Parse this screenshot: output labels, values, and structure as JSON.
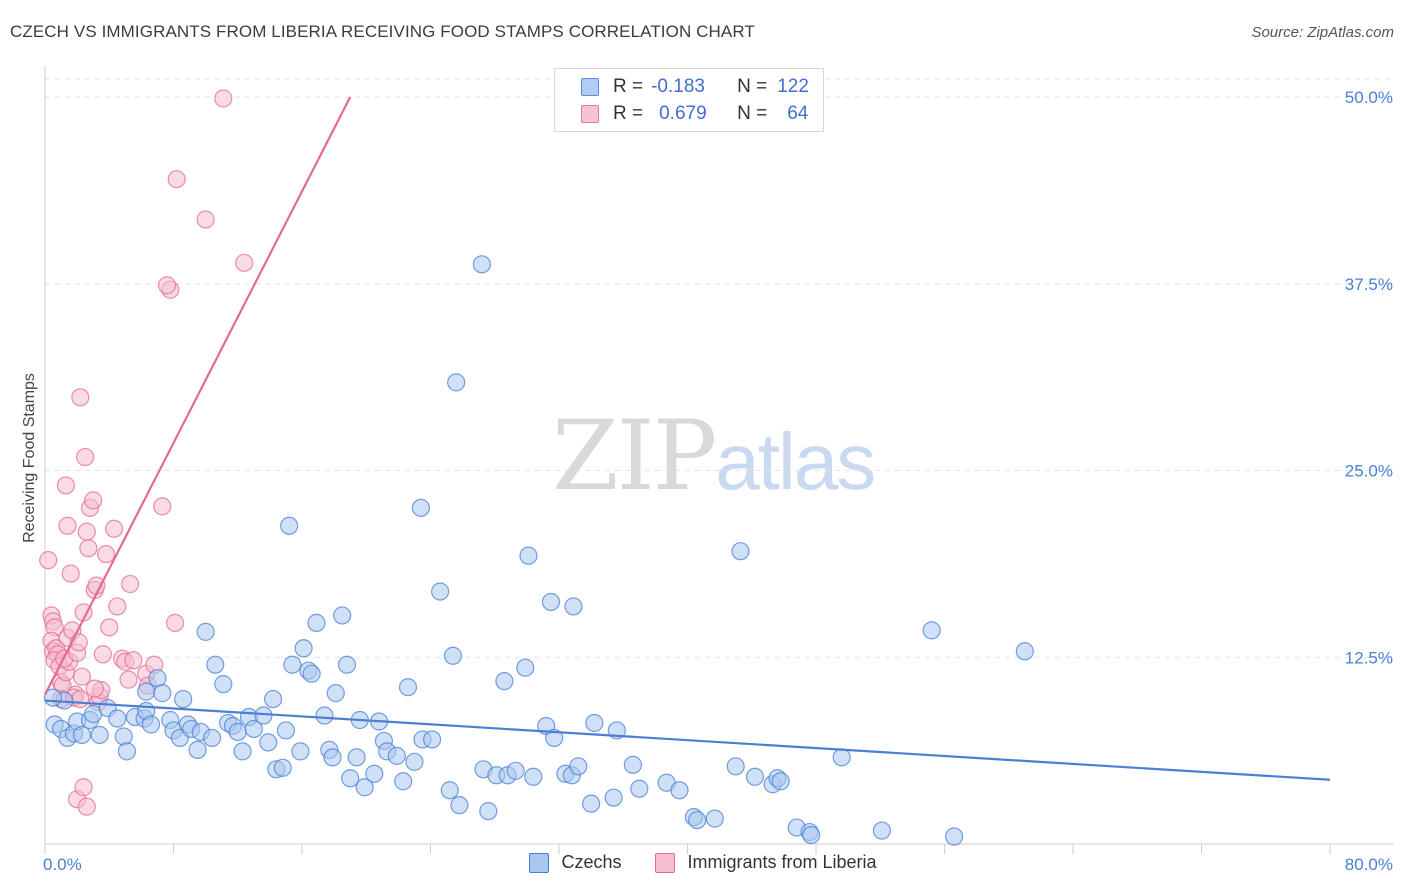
{
  "header": {
    "title": "CZECH VS IMMIGRANTS FROM LIBERIA RECEIVING FOOD STAMPS CORRELATION CHART",
    "source": "Source: ZipAtlas.com"
  },
  "watermark": {
    "zip": "ZIP",
    "atlas": "atlas"
  },
  "legend": {
    "r_label": "R =",
    "n_label": "N =",
    "series": [
      {
        "r": "-0.183",
        "n": "122"
      },
      {
        "r": "0.679",
        "n": "64"
      }
    ]
  },
  "bottom_legend": [
    "Czechs",
    "Immigrants from Liberia"
  ],
  "chart_data": {
    "type": "scatter",
    "title": "CZECH VS IMMIGRANTS FROM LIBERIA RECEIVING FOOD STAMPS CORRELATION CHART",
    "xlabel": "",
    "ylabel": "Receiving Food Stamps",
    "xlim": [
      0,
      80
    ],
    "ylim": [
      0,
      50
    ],
    "x_tick_labels": [
      "0.0%",
      "80.0%"
    ],
    "y_ticks": [
      12.5,
      25.0,
      37.5,
      50.0
    ],
    "y_tick_labels": [
      "12.5%",
      "25.0%",
      "37.5%",
      "50.0%"
    ],
    "grid": true,
    "legend_position": "top-center",
    "colors": {
      "czechs": "#4a7fd4",
      "liberia": "#e46a96",
      "czechs_fill": "#a9c8f0",
      "liberia_fill": "#f6bdd0"
    },
    "series": [
      {
        "name": "Czechs",
        "r": -0.183,
        "n": 122,
        "trend": [
          [
            0,
            9.6
          ],
          [
            80,
            4.3
          ]
        ],
        "points": [
          [
            0.6,
            8.0
          ],
          [
            1.0,
            7.7
          ],
          [
            1.2,
            9.6
          ],
          [
            1.4,
            7.1
          ],
          [
            1.8,
            7.4
          ],
          [
            2.0,
            8.2
          ],
          [
            2.3,
            7.3
          ],
          [
            2.8,
            8.3
          ],
          [
            3.0,
            8.7
          ],
          [
            3.4,
            7.3
          ],
          [
            3.9,
            9.1
          ],
          [
            4.5,
            8.4
          ],
          [
            4.9,
            7.2
          ],
          [
            5.1,
            6.2
          ],
          [
            5.6,
            8.5
          ],
          [
            6.2,
            8.4
          ],
          [
            6.3,
            8.9
          ],
          [
            6.6,
            8.0
          ],
          [
            6.3,
            10.2
          ],
          [
            7.0,
            11.1
          ],
          [
            7.3,
            10.1
          ],
          [
            7.8,
            8.3
          ],
          [
            8.0,
            7.6
          ],
          [
            8.4,
            7.1
          ],
          [
            8.6,
            9.7
          ],
          [
            8.9,
            8.0
          ],
          [
            9.1,
            7.7
          ],
          [
            9.5,
            6.3
          ],
          [
            9.7,
            7.5
          ],
          [
            10.0,
            14.2
          ],
          [
            10.4,
            7.1
          ],
          [
            10.6,
            12.0
          ],
          [
            11.1,
            10.7
          ],
          [
            11.4,
            8.1
          ],
          [
            11.7,
            7.9
          ],
          [
            12.0,
            7.5
          ],
          [
            12.3,
            6.2
          ],
          [
            12.7,
            8.5
          ],
          [
            13.0,
            7.7
          ],
          [
            13.6,
            8.6
          ],
          [
            13.9,
            6.8
          ],
          [
            14.2,
            9.7
          ],
          [
            14.4,
            5.0
          ],
          [
            14.8,
            5.1
          ],
          [
            15.0,
            7.6
          ],
          [
            15.2,
            21.3
          ],
          [
            15.4,
            12.0
          ],
          [
            15.9,
            6.2
          ],
          [
            16.1,
            13.1
          ],
          [
            16.4,
            11.6
          ],
          [
            16.6,
            11.4
          ],
          [
            16.9,
            14.8
          ],
          [
            17.4,
            8.6
          ],
          [
            17.7,
            6.3
          ],
          [
            17.9,
            5.8
          ],
          [
            18.1,
            10.1
          ],
          [
            18.5,
            15.3
          ],
          [
            18.8,
            12.0
          ],
          [
            19.0,
            4.4
          ],
          [
            19.4,
            5.8
          ],
          [
            19.6,
            8.3
          ],
          [
            19.9,
            3.8
          ],
          [
            20.5,
            4.7
          ],
          [
            20.8,
            8.2
          ],
          [
            21.1,
            6.9
          ],
          [
            21.3,
            6.2
          ],
          [
            21.9,
            5.9
          ],
          [
            22.3,
            4.2
          ],
          [
            22.6,
            10.5
          ],
          [
            23.0,
            5.5
          ],
          [
            23.4,
            22.5
          ],
          [
            23.5,
            7.0
          ],
          [
            24.1,
            7.0
          ],
          [
            24.6,
            16.9
          ],
          [
            25.2,
            3.6
          ],
          [
            25.4,
            12.6
          ],
          [
            25.6,
            30.9
          ],
          [
            25.8,
            2.6
          ],
          [
            27.2,
            38.8
          ],
          [
            27.3,
            5.0
          ],
          [
            27.6,
            2.2
          ],
          [
            28.1,
            4.6
          ],
          [
            28.6,
            10.9
          ],
          [
            28.8,
            4.6
          ],
          [
            29.3,
            4.9
          ],
          [
            29.9,
            11.8
          ],
          [
            30.4,
            4.5
          ],
          [
            30.1,
            19.3
          ],
          [
            31.2,
            7.9
          ],
          [
            31.5,
            16.2
          ],
          [
            31.7,
            7.1
          ],
          [
            32.4,
            4.7
          ],
          [
            32.9,
            15.9
          ],
          [
            32.8,
            4.6
          ],
          [
            33.2,
            5.2
          ],
          [
            34.0,
            2.7
          ],
          [
            34.2,
            8.1
          ],
          [
            35.4,
            3.1
          ],
          [
            35.6,
            7.6
          ],
          [
            36.6,
            5.3
          ],
          [
            37.0,
            3.7
          ],
          [
            38.7,
            4.1
          ],
          [
            39.5,
            3.6
          ],
          [
            40.4,
            1.8
          ],
          [
            40.6,
            1.6
          ],
          [
            41.7,
            1.7
          ],
          [
            43.0,
            5.2
          ],
          [
            43.3,
            19.6
          ],
          [
            44.2,
            4.5
          ],
          [
            45.3,
            4.0
          ],
          [
            45.6,
            4.4
          ],
          [
            45.8,
            4.2
          ],
          [
            46.8,
            1.1
          ],
          [
            47.6,
            0.8
          ],
          [
            47.7,
            0.6
          ],
          [
            49.6,
            5.8
          ],
          [
            52.1,
            0.9
          ],
          [
            55.2,
            14.3
          ],
          [
            56.6,
            0.5
          ],
          [
            61.0,
            12.9
          ],
          [
            0.5,
            9.8
          ]
        ]
      },
      {
        "name": "Immigrants from Liberia",
        "r": 0.679,
        "n": 64,
        "trend": [
          [
            0,
            10.0
          ],
          [
            19,
            50.0
          ]
        ],
        "points": [
          [
            0.2,
            19.0
          ],
          [
            0.4,
            15.3
          ],
          [
            0.5,
            14.9
          ],
          [
            0.6,
            14.5
          ],
          [
            0.4,
            13.6
          ],
          [
            0.5,
            12.9
          ],
          [
            0.7,
            13.1
          ],
          [
            0.8,
            12.7
          ],
          [
            0.6,
            12.3
          ],
          [
            0.9,
            11.9
          ],
          [
            1.0,
            10.8
          ],
          [
            1.1,
            10.6
          ],
          [
            1.0,
            9.7
          ],
          [
            1.3,
            11.5
          ],
          [
            1.5,
            12.2
          ],
          [
            1.4,
            13.8
          ],
          [
            1.2,
            12.4
          ],
          [
            1.3,
            24.0
          ],
          [
            1.4,
            21.3
          ],
          [
            1.6,
            18.1
          ],
          [
            1.7,
            14.3
          ],
          [
            1.9,
            10.0
          ],
          [
            1.8,
            9.8
          ],
          [
            2.0,
            12.8
          ],
          [
            2.1,
            13.5
          ],
          [
            2.2,
            9.7
          ],
          [
            2.3,
            11.2
          ],
          [
            2.4,
            15.5
          ],
          [
            2.2,
            29.9
          ],
          [
            2.5,
            25.9
          ],
          [
            2.6,
            20.9
          ],
          [
            2.7,
            19.8
          ],
          [
            2.8,
            22.5
          ],
          [
            3.0,
            23.0
          ],
          [
            3.1,
            17.0
          ],
          [
            3.2,
            17.3
          ],
          [
            3.3,
            9.5
          ],
          [
            3.4,
            9.9
          ],
          [
            3.5,
            10.3
          ],
          [
            3.6,
            12.7
          ],
          [
            3.8,
            19.4
          ],
          [
            4.0,
            14.5
          ],
          [
            4.3,
            21.1
          ],
          [
            4.5,
            15.9
          ],
          [
            4.8,
            12.4
          ],
          [
            5.0,
            12.2
          ],
          [
            5.3,
            17.4
          ],
          [
            5.2,
            11.0
          ],
          [
            5.5,
            12.3
          ],
          [
            6.3,
            11.4
          ],
          [
            6.8,
            12.0
          ],
          [
            7.3,
            22.6
          ],
          [
            7.8,
            37.1
          ],
          [
            8.1,
            14.8
          ],
          [
            8.2,
            44.5
          ],
          [
            10.0,
            41.8
          ],
          [
            11.1,
            49.9
          ],
          [
            12.4,
            38.9
          ],
          [
            2.0,
            3.0
          ],
          [
            2.4,
            3.8
          ],
          [
            2.6,
            2.5
          ],
          [
            7.6,
            37.4
          ],
          [
            3.1,
            10.4
          ],
          [
            6.4,
            10.6
          ]
        ]
      }
    ]
  }
}
